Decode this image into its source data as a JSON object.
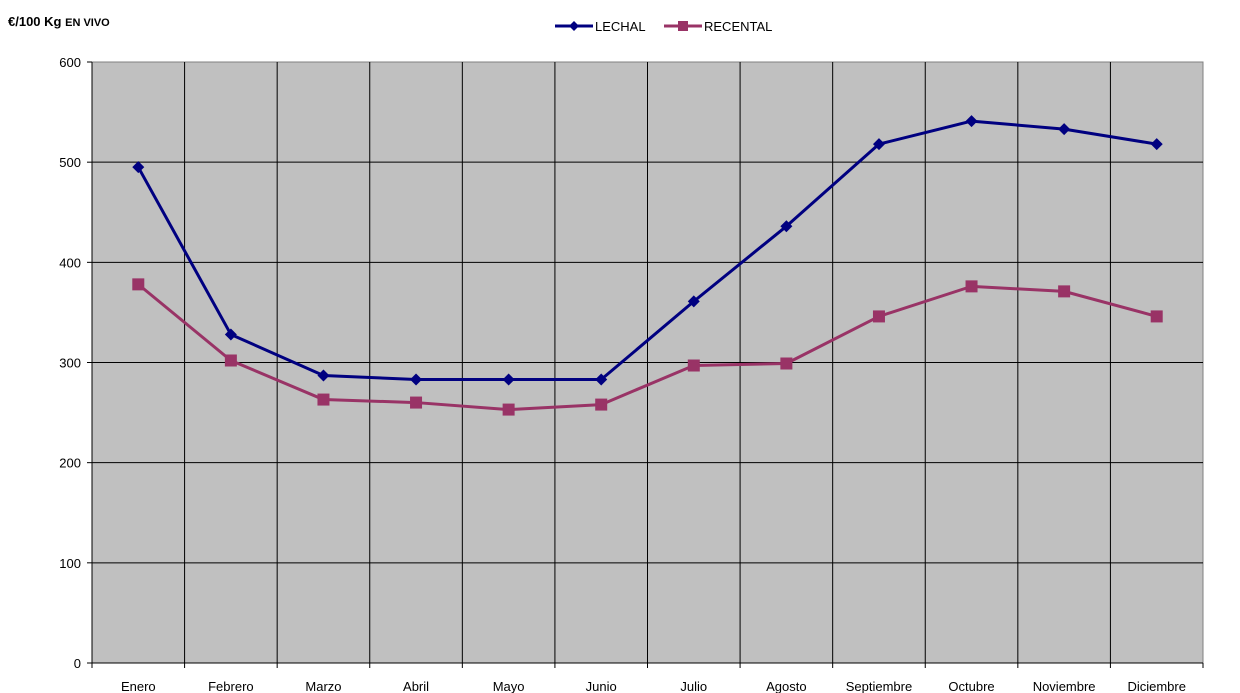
{
  "chart_data": {
    "type": "line",
    "title_main": "€/100 Kg",
    "title_sub": "EN VIVO",
    "categories": [
      "Enero",
      "Febrero",
      "Marzo",
      "Abril",
      "Mayo",
      "Junio",
      "Julio",
      "Agosto",
      "Septiembre",
      "Octubre",
      "Noviembre",
      "Diciembre"
    ],
    "series": [
      {
        "name": "LECHAL",
        "color": "#000080",
        "marker": "diamond",
        "values": [
          495,
          328,
          287,
          283,
          283,
          283,
          361,
          436,
          518,
          541,
          533,
          518
        ]
      },
      {
        "name": "RECENTAL",
        "color": "#993366",
        "marker": "square",
        "values": [
          378,
          302,
          263,
          260,
          253,
          258,
          297,
          299,
          346,
          376,
          371,
          346
        ]
      }
    ],
    "ylim": [
      0,
      600
    ],
    "yticks": [
      0,
      100,
      200,
      300,
      400,
      500,
      600
    ],
    "grid": true,
    "plot_background": "#c0c0c0",
    "legend_position": "top"
  }
}
